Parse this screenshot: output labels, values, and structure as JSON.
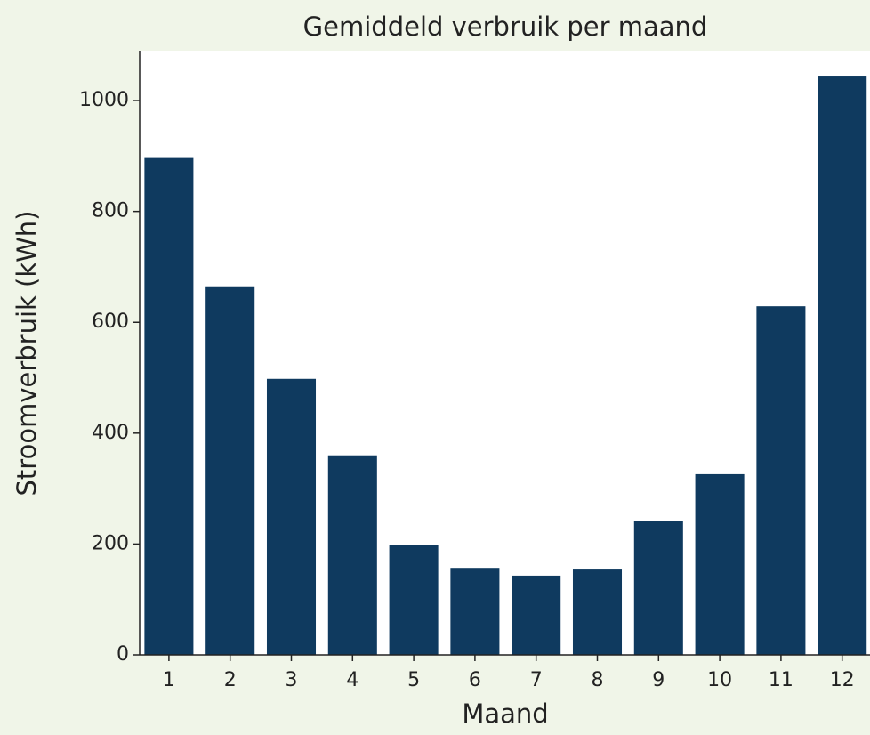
{
  "chart_data": {
    "type": "bar",
    "title": "Gemiddeld verbruik per maand",
    "x_label": "Maand",
    "y_label": "Stroomverbruik (kWh)",
    "categories": [
      "1",
      "2",
      "3",
      "4",
      "5",
      "6",
      "7",
      "8",
      "9",
      "10",
      "11",
      "12"
    ],
    "values": [
      898,
      665,
      498,
      360,
      199,
      157,
      143,
      154,
      242,
      326,
      629,
      1045
    ],
    "color": "#0f3a5f",
    "ylim": [
      0,
      1090
    ],
    "yticks": [
      0,
      200,
      400,
      600,
      800,
      1000
    ],
    "grid": false
  }
}
